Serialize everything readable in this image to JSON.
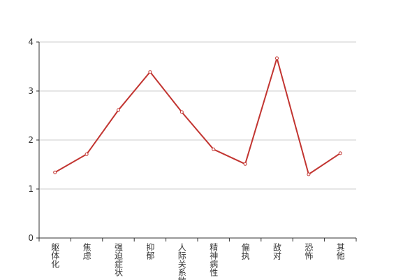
{
  "chart_data": {
    "type": "line",
    "categories": [
      "躯体化",
      "焦虑",
      "强迫症状",
      "抑郁",
      "人际关系敏感",
      "精神病性",
      "偏执",
      "敌对",
      "恐怖",
      "其他"
    ],
    "series": [
      {
        "color": "#c23531",
        "values": [
          1.34,
          1.71,
          2.61,
          3.39,
          2.57,
          1.81,
          1.51,
          3.67,
          1.3,
          1.73
        ]
      }
    ],
    "ylim": [
      0,
      4
    ],
    "yticks": [
      0,
      1,
      2,
      3,
      4
    ],
    "grid": true
  }
}
